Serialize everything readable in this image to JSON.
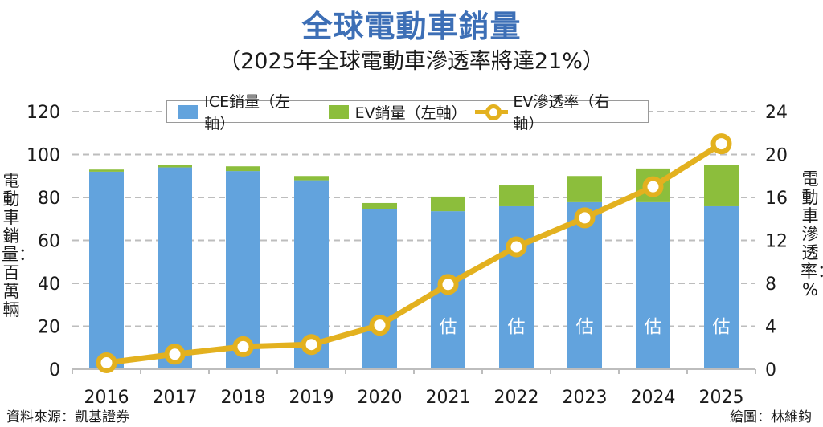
{
  "title": "全球電動車銷量",
  "subtitle": "（2025年全球電動車滲透率將達21%）",
  "footer": {
    "source": "資料來源：凱基證券",
    "credit": "繪圖：林維鈞"
  },
  "colors": {
    "ice": "#62a3dd",
    "ev": "#8cbe3c",
    "rate": "#e3b11f",
    "title": "#3d6fb6",
    "grid": "#bdbdbd"
  },
  "chart_data": {
    "type": "bar",
    "stacked": true,
    "title": "全球電動車銷量",
    "subtitle": "（2025年全球電動車滲透率將達21%）",
    "categories": [
      "2016",
      "2017",
      "2018",
      "2019",
      "2020",
      "2021",
      "2022",
      "2023",
      "2024",
      "2025"
    ],
    "series": [
      {
        "name": "ICE銷量（左軸）",
        "axis": "left",
        "type": "bar",
        "values": [
          92,
          94,
          92.3,
          88,
          74.4,
          73.6,
          75.9,
          77.8,
          77.8,
          75.9
        ]
      },
      {
        "name": "EV銷量（左軸）",
        "axis": "left",
        "type": "bar",
        "values": [
          1,
          1.3,
          2.2,
          2,
          3,
          6.8,
          9.7,
          12.2,
          15.7,
          19.4
        ]
      },
      {
        "name": "EV滲透率（右軸）",
        "axis": "right",
        "type": "line",
        "values": [
          0.6,
          1.4,
          2.1,
          2.3,
          4.1,
          7.9,
          11.4,
          14.1,
          17.0,
          21.0
        ]
      }
    ],
    "estimate_label": "估",
    "estimate_categories": [
      "2021",
      "2022",
      "2023",
      "2024",
      "2025"
    ],
    "ylabel": "電動車銷量：百萬輛",
    "ylabel_right": "電動車滲透率：%",
    "xlabel": "",
    "ylim": [
      0,
      120
    ],
    "yticks": [
      0,
      20,
      40,
      60,
      80,
      100,
      120
    ],
    "ylim_right": [
      0,
      24
    ],
    "yticks_right": [
      0,
      4,
      8,
      12,
      16,
      20,
      24
    ],
    "grid": true,
    "legend_position": "top-center"
  }
}
